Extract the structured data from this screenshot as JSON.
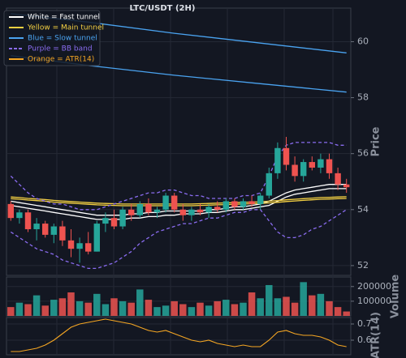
{
  "chart_data": {
    "type": "candlestick",
    "title": "LTC/USDT (2H)",
    "y_label": "Price",
    "ylim": [
      51.65,
      61.2
    ],
    "yticks": [
      52,
      54,
      56,
      58,
      60
    ],
    "up_color": "#26a69a",
    "down_color": "#ef5350",
    "ohlc": [
      [
        54.2,
        54.3,
        53.6,
        53.7
      ],
      [
        53.7,
        54.0,
        53.5,
        53.9
      ],
      [
        53.9,
        54.0,
        53.2,
        53.3
      ],
      [
        53.3,
        53.7,
        52.9,
        53.5
      ],
      [
        53.5,
        53.6,
        53.0,
        53.1
      ],
      [
        53.1,
        53.5,
        52.8,
        53.4
      ],
      [
        53.4,
        53.6,
        52.7,
        52.9
      ],
      [
        52.9,
        53.3,
        52.3,
        52.6
      ],
      [
        52.6,
        53.0,
        52.1,
        52.8
      ],
      [
        52.8,
        53.2,
        52.4,
        52.5
      ],
      [
        52.5,
        53.6,
        52.5,
        53.5
      ],
      [
        53.5,
        53.9,
        53.2,
        53.7
      ],
      [
        53.7,
        54.0,
        53.3,
        53.4
      ],
      [
        53.4,
        54.1,
        53.3,
        54.0
      ],
      [
        54.0,
        54.2,
        53.6,
        53.8
      ],
      [
        53.8,
        54.3,
        53.7,
        54.2
      ],
      [
        54.2,
        54.4,
        53.8,
        53.9
      ],
      [
        53.9,
        54.1,
        53.7,
        54.0
      ],
      [
        54.0,
        54.6,
        53.9,
        54.5
      ],
      [
        54.5,
        54.6,
        53.9,
        54.0
      ],
      [
        54.0,
        54.2,
        53.6,
        53.8
      ],
      [
        53.8,
        54.1,
        53.6,
        54.0
      ],
      [
        54.0,
        54.2,
        53.8,
        53.9
      ],
      [
        53.9,
        54.2,
        53.7,
        54.1
      ],
      [
        54.1,
        54.3,
        53.9,
        54.0
      ],
      [
        54.0,
        54.4,
        53.9,
        54.3
      ],
      [
        54.3,
        54.4,
        54.0,
        54.1
      ],
      [
        54.1,
        54.4,
        54.0,
        54.3
      ],
      [
        54.3,
        54.5,
        54.1,
        54.2
      ],
      [
        54.2,
        54.6,
        54.0,
        54.5
      ],
      [
        54.5,
        55.5,
        54.4,
        55.3
      ],
      [
        55.3,
        56.4,
        55.1,
        56.2
      ],
      [
        56.2,
        56.6,
        55.4,
        55.6
      ],
      [
        55.6,
        55.9,
        55.0,
        55.2
      ],
      [
        55.2,
        55.8,
        55.0,
        55.7
      ],
      [
        55.7,
        55.9,
        55.4,
        55.5
      ],
      [
        55.5,
        56.0,
        55.3,
        55.8
      ],
      [
        55.8,
        56.0,
        55.1,
        55.3
      ],
      [
        55.3,
        55.5,
        54.7,
        54.9
      ],
      [
        54.9,
        55.1,
        54.6,
        54.8
      ]
    ],
    "lines": [
      {
        "name": "White = Fast tunnel",
        "color": "#ffffff",
        "values": [
          54.3,
          54.25,
          54.2,
          54.15,
          54.1,
          54.05,
          54.0,
          53.95,
          53.9,
          53.85,
          53.8,
          53.8,
          53.8,
          53.8,
          53.85,
          53.85,
          53.9,
          53.9,
          53.95,
          53.95,
          53.95,
          53.95,
          53.95,
          54.0,
          54.0,
          54.05,
          54.1,
          54.1,
          54.15,
          54.2,
          54.3,
          54.45,
          54.6,
          54.7,
          54.75,
          54.8,
          54.85,
          54.9,
          54.9,
          54.9
        ],
        "values2": [
          54.15,
          54.1,
          54.05,
          54.0,
          53.95,
          53.9,
          53.85,
          53.8,
          53.75,
          53.7,
          53.65,
          53.65,
          53.65,
          53.65,
          53.7,
          53.7,
          53.75,
          53.75,
          53.8,
          53.8,
          53.85,
          53.85,
          53.85,
          53.9,
          53.9,
          53.95,
          54.0,
          54.0,
          54.05,
          54.1,
          54.15,
          54.3,
          54.45,
          54.55,
          54.6,
          54.65,
          54.7,
          54.75,
          54.75,
          54.75
        ]
      },
      {
        "name": "Yellow = Main tunnel",
        "color": "#f5d142",
        "values": [
          54.45,
          54.43,
          54.4,
          54.38,
          54.36,
          54.33,
          54.31,
          54.29,
          54.27,
          54.25,
          54.23,
          54.22,
          54.21,
          54.2,
          54.2,
          54.2,
          54.2,
          54.2,
          54.2,
          54.2,
          54.2,
          54.2,
          54.21,
          54.22,
          54.23,
          54.24,
          54.25,
          54.26,
          54.27,
          54.28,
          54.3,
          54.32,
          54.35,
          54.37,
          54.39,
          54.41,
          54.43,
          54.44,
          54.45,
          54.46
        ],
        "values2": [
          54.39,
          54.37,
          54.34,
          54.32,
          54.3,
          54.27,
          54.25,
          54.23,
          54.21,
          54.19,
          54.17,
          54.16,
          54.15,
          54.14,
          54.14,
          54.14,
          54.14,
          54.14,
          54.14,
          54.14,
          54.14,
          54.14,
          54.15,
          54.16,
          54.17,
          54.18,
          54.19,
          54.2,
          54.21,
          54.22,
          54.24,
          54.26,
          54.29,
          54.31,
          54.33,
          54.35,
          54.37,
          54.38,
          54.39,
          54.4
        ]
      },
      {
        "name": "Blue = Slow tunnel",
        "color": "#4aa3f0",
        "x": [
          1,
          10,
          20,
          30,
          40
        ],
        "values": [
          61.0,
          60.7,
          60.3,
          59.95,
          59.6
        ],
        "values2": [
          59.5,
          59.15,
          58.8,
          58.5,
          58.2
        ]
      },
      {
        "name": "Purple = BB band",
        "color": "#8a6cf0",
        "dashed": true,
        "values": [
          55.2,
          54.9,
          54.6,
          54.4,
          54.3,
          54.2,
          54.2,
          54.1,
          54.0,
          54.0,
          54.0,
          54.1,
          54.2,
          54.3,
          54.4,
          54.5,
          54.6,
          54.6,
          54.7,
          54.7,
          54.6,
          54.5,
          54.5,
          54.4,
          54.4,
          54.4,
          54.4,
          54.5,
          54.5,
          54.6,
          55.2,
          55.9,
          56.3,
          56.4,
          56.4,
          56.4,
          56.4,
          56.4,
          56.3,
          56.3
        ],
        "values2": [
          53.2,
          53.0,
          52.8,
          52.6,
          52.5,
          52.4,
          52.2,
          52.1,
          52.0,
          51.9,
          51.9,
          52.0,
          52.1,
          52.3,
          52.5,
          52.8,
          53.0,
          53.2,
          53.3,
          53.4,
          53.5,
          53.5,
          53.6,
          53.7,
          53.7,
          53.8,
          53.9,
          53.9,
          54.0,
          54.0,
          53.6,
          53.2,
          53.0,
          53.0,
          53.1,
          53.3,
          53.4,
          53.6,
          53.8,
          54.0
        ]
      }
    ],
    "volume": {
      "y_label": "Volume",
      "ylim": [
        0,
        265000
      ],
      "yticks": [
        100000,
        200000
      ],
      "values": [
        60000,
        90000,
        80000,
        140000,
        70000,
        110000,
        120000,
        160000,
        100000,
        90000,
        150000,
        80000,
        120000,
        100000,
        90000,
        180000,
        110000,
        60000,
        70000,
        100000,
        80000,
        60000,
        90000,
        70000,
        100000,
        110000,
        80000,
        90000,
        160000,
        120000,
        210000,
        120000,
        130000,
        90000,
        230000,
        140000,
        150000,
        100000,
        60000,
        30000
      ]
    },
    "atr": {
      "name": "Orange = ATR(14)",
      "y_label": "ATR(14)",
      "color": "#f5a623",
      "ylim": [
        0.51,
        0.74
      ],
      "yticks": [
        0.6,
        0.7
      ],
      "values": [
        0.53,
        0.53,
        0.54,
        0.55,
        0.57,
        0.6,
        0.64,
        0.68,
        0.7,
        0.71,
        0.72,
        0.73,
        0.72,
        0.71,
        0.7,
        0.68,
        0.66,
        0.65,
        0.66,
        0.64,
        0.62,
        0.6,
        0.59,
        0.6,
        0.58,
        0.57,
        0.56,
        0.57,
        0.56,
        0.56,
        0.6,
        0.65,
        0.66,
        0.64,
        0.63,
        0.63,
        0.62,
        0.6,
        0.57,
        0.56
      ]
    }
  }
}
